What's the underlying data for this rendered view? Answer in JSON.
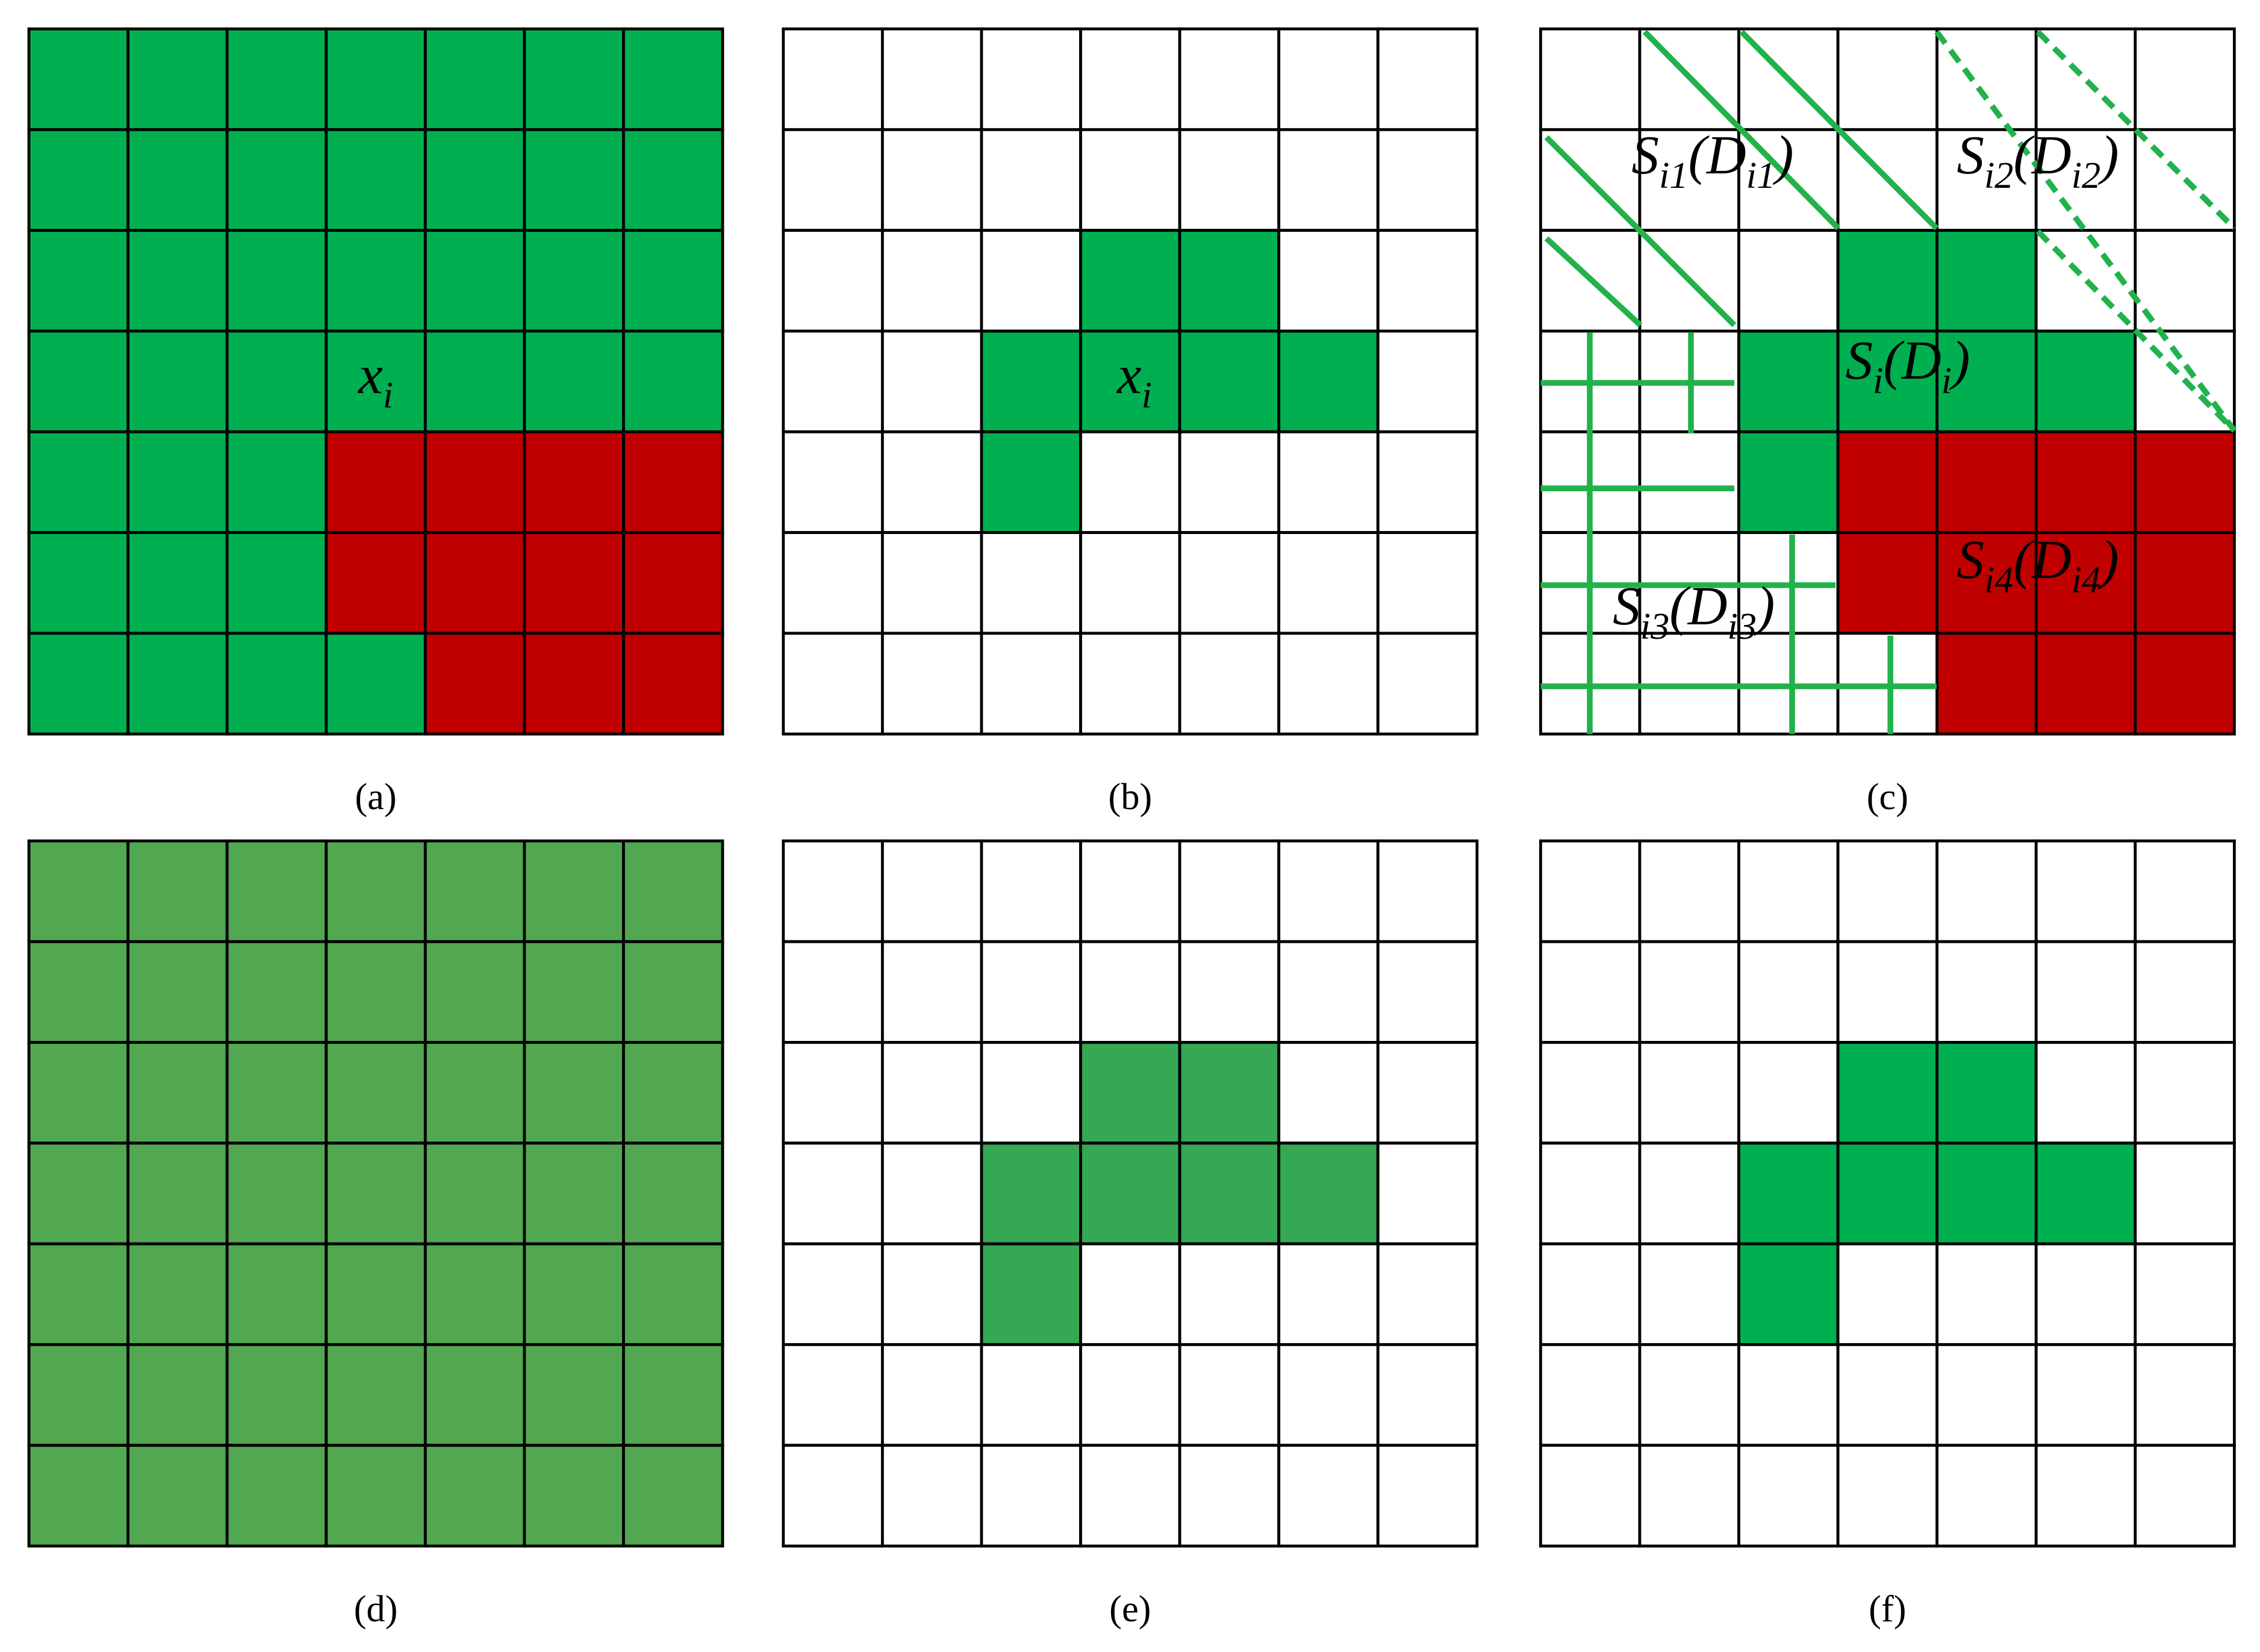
{
  "panels": [
    {
      "label": "(a)",
      "annotations": [
        {
          "parts": [
            {
              "text": "x"
            },
            {
              "sub": "i"
            }
          ]
        }
      ]
    },
    {
      "label": "(b)",
      "annotations": [
        {
          "parts": [
            {
              "text": "x"
            },
            {
              "sub": "i"
            }
          ]
        }
      ]
    },
    {
      "label": "(c)",
      "annotations": [
        {
          "parts": [
            {
              "text": "S"
            },
            {
              "sub": "i1"
            },
            {
              "text": "(D"
            },
            {
              "sub": "i1"
            },
            {
              "text": ")"
            }
          ]
        },
        {
          "parts": [
            {
              "text": "S"
            },
            {
              "sub": "i2"
            },
            {
              "text": "(D"
            },
            {
              "sub": "i2"
            },
            {
              "text": ")"
            }
          ]
        },
        {
          "parts": [
            {
              "text": "S"
            },
            {
              "sub": "i"
            },
            {
              "text": "(D"
            },
            {
              "sub": "i"
            },
            {
              "text": ")"
            }
          ]
        },
        {
          "parts": [
            {
              "text": "S"
            },
            {
              "sub": "i3"
            },
            {
              "text": "(D"
            },
            {
              "sub": "i3"
            },
            {
              "text": ")"
            }
          ]
        },
        {
          "parts": [
            {
              "text": "S"
            },
            {
              "sub": "i4"
            },
            {
              "text": "(D"
            },
            {
              "sub": "i4"
            },
            {
              "text": ")"
            }
          ]
        }
      ]
    },
    {
      "label": "(d)",
      "annotations": []
    },
    {
      "label": "(e)",
      "annotations": []
    },
    {
      "label": "(f)",
      "annotations": []
    }
  ]
}
